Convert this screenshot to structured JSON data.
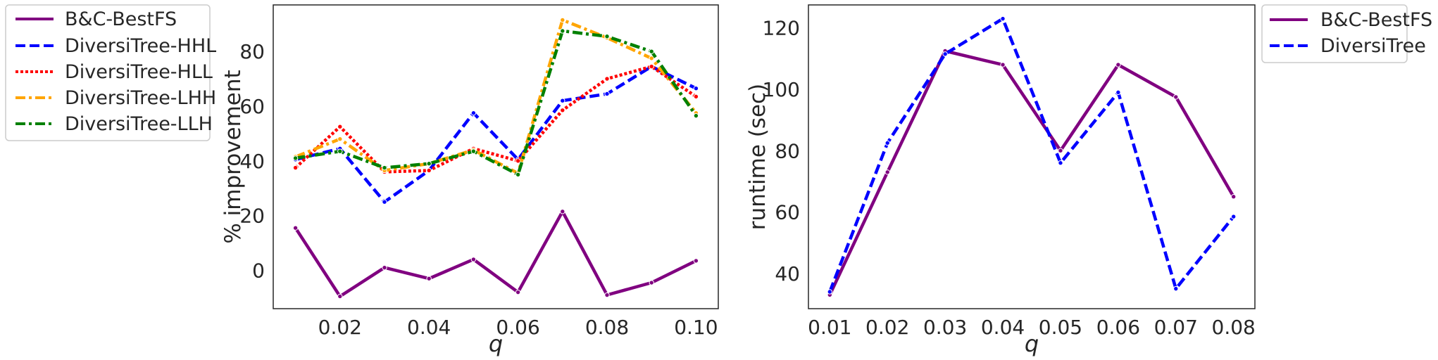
{
  "chart_data": [
    {
      "type": "line",
      "xlabel": "q",
      "ylabel": "% improvement",
      "xlim": [
        0.005,
        0.105
      ],
      "ylim": [
        -14,
        97
      ],
      "x_ticks": [
        "0.02",
        "0.04",
        "0.06",
        "0.08",
        "0.10"
      ],
      "y_ticks": [
        "0",
        "20",
        "40",
        "60",
        "80"
      ],
      "grid": false,
      "legend_placement": "outside-left",
      "x": [
        0.01,
        0.02,
        0.03,
        0.04,
        0.05,
        0.06,
        0.07,
        0.08,
        0.09,
        0.1
      ],
      "series": [
        {
          "name": "B&C-BestFS",
          "color": "#800080",
          "dash": "solid",
          "values": [
            15.5,
            -9.5,
            1,
            -3,
            4,
            -8,
            21.5,
            -9,
            -4.5,
            3.5
          ]
        },
        {
          "name": "DiversiTree-HHL",
          "color": "#0000ff",
          "dash": "dashed",
          "values": [
            40.5,
            44.5,
            25,
            36.5,
            57.5,
            40.5,
            62,
            64.5,
            74.5,
            66.5
          ]
        },
        {
          "name": "DiversiTree-HLL",
          "color": "#ff0000",
          "dash": "dotted",
          "values": [
            37.5,
            52.5,
            36,
            36.5,
            44.5,
            40,
            58.5,
            70,
            74.5,
            63.5
          ]
        },
        {
          "name": "DiversiTree-LHH",
          "color": "#ffa500",
          "dash": "dashdot",
          "values": [
            41.5,
            48,
            36.5,
            39,
            44,
            35.5,
            91.5,
            85,
            77.5,
            57.5
          ]
        },
        {
          "name": "DiversiTree-LLH",
          "color": "#008000",
          "dash": "dashdot",
          "values": [
            41,
            43.5,
            37.5,
            39,
            43.5,
            35,
            87.5,
            85.5,
            80,
            56.5
          ]
        }
      ]
    },
    {
      "type": "line",
      "xlabel": "q",
      "ylabel": "runtime (sec)",
      "xlim": [
        0.0063,
        0.0837
      ],
      "ylim": [
        28.5,
        127.5
      ],
      "x_ticks": [
        "0.01",
        "0.02",
        "0.03",
        "0.04",
        "0.05",
        "0.06",
        "0.07",
        "0.08"
      ],
      "y_ticks": [
        "40",
        "60",
        "80",
        "100",
        "120"
      ],
      "grid": false,
      "legend_placement": "outside-right",
      "x": [
        0.01,
        0.02,
        0.03,
        0.04,
        0.05,
        0.06,
        0.07,
        0.08
      ],
      "series": [
        {
          "name": "B&C-BestFS",
          "color": "#800080",
          "dash": "solid",
          "values": [
            33,
            73,
            112.5,
            108,
            80,
            108,
            97.5,
            65
          ]
        },
        {
          "name": "DiversiTree",
          "color": "#0000ff",
          "dash": "dashed",
          "values": [
            34,
            82.5,
            111.5,
            123,
            76,
            99,
            35,
            58.5
          ]
        }
      ]
    }
  ]
}
